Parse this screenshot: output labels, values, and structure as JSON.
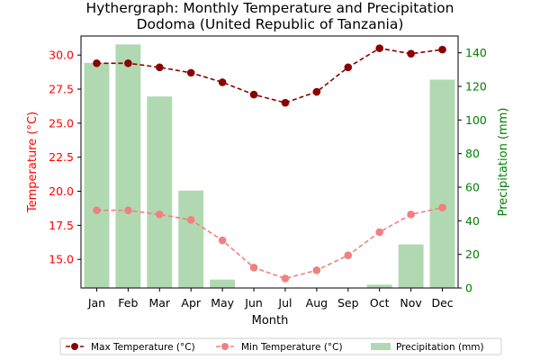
{
  "chart_data": {
    "type": "bar+line",
    "title": "Hythergraph: Monthly Temperature and Precipitation",
    "subtitle": "Dodoma (United Republic of Tanzania)",
    "xlabel": "Month",
    "ylabel_left": "Temperature (°C)",
    "ylabel_right": "Precipitation (mm)",
    "categories": [
      "Jan",
      "Feb",
      "Mar",
      "Apr",
      "May",
      "Jun",
      "Jul",
      "Aug",
      "Sep",
      "Oct",
      "Nov",
      "Dec"
    ],
    "ylim_left": [
      12.9,
      31.4
    ],
    "yticks_left": [
      15.0,
      17.5,
      20.0,
      22.5,
      25.0,
      27.5,
      30.0
    ],
    "ytick_labels_left": [
      "15.0",
      "17.5",
      "20.0",
      "22.5",
      "25.0",
      "27.5",
      "30.0"
    ],
    "ylim_right": [
      0,
      150
    ],
    "yticks_right": [
      0,
      20,
      40,
      60,
      80,
      100,
      120,
      140
    ],
    "ytick_labels_right": [
      "0",
      "20",
      "40",
      "60",
      "80",
      "100",
      "120",
      "140"
    ],
    "grid": false,
    "legend_placement": "bottom-center",
    "series": [
      {
        "name": "Max Temperature (°C)",
        "kind": "line",
        "axis": "left",
        "color": "#8b0000",
        "linestyle": "dashed",
        "marker": "circle",
        "values": [
          29.4,
          29.4,
          29.1,
          28.7,
          28.0,
          27.1,
          26.5,
          27.3,
          29.1,
          30.5,
          30.1,
          30.4
        ]
      },
      {
        "name": "Min Temperature (°C)",
        "kind": "line",
        "axis": "left",
        "color": "#f08080",
        "linestyle": "dashed",
        "marker": "circle",
        "values": [
          18.6,
          18.6,
          18.3,
          17.9,
          16.4,
          14.4,
          13.6,
          14.2,
          15.3,
          17.0,
          18.3,
          18.8
        ]
      },
      {
        "name": "Precipitation (mm)",
        "kind": "bar",
        "axis": "right",
        "color": "#90c990",
        "values": [
          134,
          145,
          114,
          58,
          5,
          0,
          0,
          0,
          0,
          2,
          26,
          124
        ]
      }
    ]
  }
}
